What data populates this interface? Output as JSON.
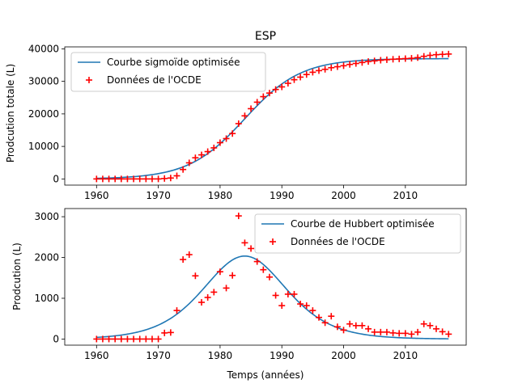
{
  "chart_data": [
    {
      "type": "line",
      "title": "ESP",
      "xlabel": "",
      "ylabel": "Prodcution totale (L)",
      "xlim": [
        1954.85,
        2019.85
      ],
      "ylim": [
        -1900,
        40600
      ],
      "xticks": [
        1960,
        1970,
        1980,
        1990,
        2000,
        2010
      ],
      "yticks": [
        0,
        10000,
        20000,
        30000,
        40000
      ],
      "legend_position": "upper-left",
      "series": [
        {
          "name": "Courbe sigmoïde optimisée",
          "kind": "line",
          "color": "#1f77b4",
          "model": "sigmoid",
          "params": {
            "K": 37000,
            "r": 0.22,
            "t0": 1984.0
          }
        },
        {
          "name": "Données de l'OCDE",
          "kind": "scatter",
          "color": "#ff0000",
          "marker": "+",
          "x": [
            1960,
            1961,
            1962,
            1963,
            1964,
            1965,
            1966,
            1967,
            1968,
            1969,
            1970,
            1971,
            1972,
            1973,
            1974,
            1975,
            1976,
            1977,
            1978,
            1979,
            1980,
            1981,
            1982,
            1983,
            1984,
            1985,
            1986,
            1987,
            1988,
            1989,
            1990,
            1991,
            1992,
            1993,
            1994,
            1995,
            1996,
            1997,
            1998,
            1999,
            2000,
            2001,
            2002,
            2003,
            2004,
            2005,
            2006,
            2007,
            2008,
            2009,
            2010,
            2011,
            2012,
            2013,
            2014,
            2015,
            2016,
            2017
          ],
          "y": [
            0,
            0,
            0,
            0,
            0,
            0,
            0,
            0,
            0,
            0,
            0,
            130,
            280,
            960,
            2900,
            4950,
            6500,
            7400,
            8400,
            9550,
            11150,
            12400,
            13950,
            17000,
            19400,
            21600,
            23600,
            25300,
            26400,
            27500,
            28300,
            29400,
            30500,
            31300,
            32100,
            32800,
            33300,
            33700,
            34200,
            34500,
            34800,
            35200,
            35500,
            35800,
            36100,
            36300,
            36500,
            36650,
            36800,
            36900,
            37000,
            37100,
            37300,
            37700,
            38000,
            38200,
            38300,
            38400
          ]
        }
      ]
    },
    {
      "type": "line",
      "title": "",
      "xlabel": "Temps (années)",
      "ylabel": "Prodcution (L)",
      "xlim": [
        1954.85,
        2019.85
      ],
      "ylim": [
        -150,
        3200
      ],
      "xticks": [
        1960,
        1970,
        1980,
        1990,
        2000,
        2010
      ],
      "yticks": [
        0,
        1000,
        2000,
        3000
      ],
      "legend_position": "upper-right",
      "series": [
        {
          "name": "Courbe de Hubbert optimisée",
          "kind": "line",
          "color": "#1f77b4",
          "model": "hubbert",
          "params": {
            "K": 37000,
            "r": 0.22,
            "t0": 1984.0
          }
        },
        {
          "name": "Données de l'OCDE",
          "kind": "scatter",
          "color": "#ff0000",
          "marker": "+",
          "x": [
            1960,
            1961,
            1962,
            1963,
            1964,
            1965,
            1966,
            1967,
            1968,
            1969,
            1970,
            1971,
            1972,
            1973,
            1974,
            1975,
            1976,
            1977,
            1978,
            1979,
            1980,
            1981,
            1982,
            1983,
            1984,
            1985,
            1986,
            1987,
            1988,
            1989,
            1990,
            1991,
            1992,
            1993,
            1994,
            1995,
            1996,
            1997,
            1998,
            1999,
            2000,
            2001,
            2002,
            2003,
            2004,
            2005,
            2006,
            2007,
            2008,
            2009,
            2010,
            2011,
            2012,
            2013,
            2014,
            2015,
            2016,
            2017
          ],
          "y": [
            0,
            0,
            0,
            0,
            0,
            0,
            0,
            0,
            0,
            0,
            0,
            150,
            160,
            700,
            1950,
            2070,
            1550,
            900,
            1020,
            1150,
            1650,
            1250,
            1560,
            3020,
            2360,
            2220,
            1900,
            1700,
            1520,
            1070,
            820,
            1100,
            1100,
            860,
            820,
            700,
            530,
            400,
            560,
            300,
            220,
            370,
            330,
            330,
            250,
            170,
            170,
            170,
            150,
            140,
            140,
            120,
            170,
            370,
            330,
            250,
            180,
            120
          ]
        }
      ]
    }
  ]
}
